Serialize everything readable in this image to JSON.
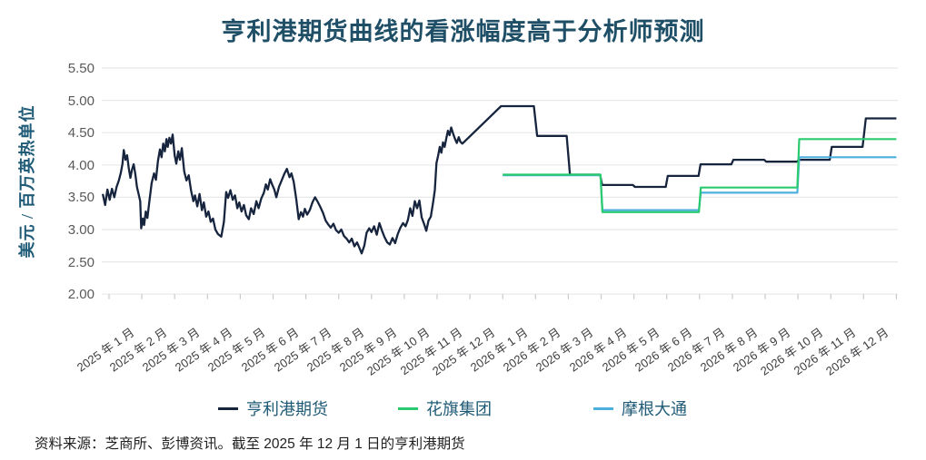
{
  "title": "亨利港期货曲线的看涨幅度高于分析师预测",
  "y_axis": {
    "label": "美元 / 百万英热单位",
    "tick_labels": [
      "5.50",
      "5.00",
      "4.50",
      "4.00",
      "3.50",
      "3.00",
      "2.50",
      "2.00"
    ]
  },
  "x_axis": {
    "tick_labels": [
      "2025 年 1 月",
      "2025 年 2 月",
      "2025 年 3 月",
      "2025 年 4 月",
      "2025 年 5 月",
      "2025 年 6 月",
      "2025 年 7 月",
      "2025 年 8 月",
      "2025 年 9 月",
      "2025 年 10 月",
      "2025 年 11 月",
      "2025 年 12 月",
      "2026 年 1 月",
      "2026 年 2 月",
      "2026 年 3 月",
      "2026 年 4 月",
      "2026 年 5 月",
      "2026 年 6 月",
      "2026 年 7 月",
      "2026 年 8 月",
      "2026 年 9 月",
      "2026 年 10 月",
      "2026 年 11 月",
      "2026 年 12 月"
    ]
  },
  "legend": {
    "items": [
      {
        "label": "亨利港期货",
        "color": "#16243e"
      },
      {
        "label": "花旗集团",
        "color": "#29cb6e"
      },
      {
        "label": "摩根大通",
        "color": "#4dafde"
      }
    ]
  },
  "source_note": "资料来源：芝商所、彭博资讯。截至 2025 年 12 月 1 日的亨利港期货",
  "chart_data": {
    "type": "line",
    "title": "亨利港期货曲线的看涨幅度高于分析师预测",
    "ylabel": "美元 / 百万英热单位",
    "ylim": [
      2.0,
      5.5
    ],
    "yticks": [
      2.0,
      2.5,
      3.0,
      3.5,
      4.0,
      4.5,
      5.0,
      5.5
    ],
    "x_unit": "months since 2025-01 (0 = 2025-01-01)",
    "xlim": [
      -0.25,
      24
    ],
    "grid": "horizontal",
    "legend_position": "bottom",
    "futures_monthly_2026": {
      "months": [
        "2026-01",
        "2026-02",
        "2026-03",
        "2026-04",
        "2026-05",
        "2026-06",
        "2026-07",
        "2026-08",
        "2026-09",
        "2026-10",
        "2026-11",
        "2026-12"
      ],
      "values": [
        4.91,
        4.45,
        3.85,
        3.69,
        3.66,
        3.83,
        4.01,
        4.08,
        4.05,
        4.08,
        4.28,
        4.72
      ]
    },
    "quarterly_forecasts_2026": {
      "citi": [
        3.85,
        3.27,
        3.65,
        4.4
      ],
      "jpmorgan": [
        3.84,
        3.3,
        3.57,
        4.12
      ]
    },
    "series": [
      {
        "name": "亨利港期货（历史价格）",
        "color": "#16243e",
        "width": 2.3,
        "points": [
          [
            -0.19,
            3.55
          ],
          [
            -0.12,
            3.38
          ],
          [
            -0.05,
            3.62
          ],
          [
            0.02,
            3.46
          ],
          [
            0.09,
            3.63
          ],
          [
            0.16,
            3.5
          ],
          [
            0.23,
            3.66
          ],
          [
            0.3,
            3.76
          ],
          [
            0.36,
            3.88
          ],
          [
            0.41,
            4.02
          ],
          [
            0.45,
            4.23
          ],
          [
            0.5,
            4.08
          ],
          [
            0.55,
            4.15
          ],
          [
            0.6,
            3.95
          ],
          [
            0.65,
            3.8
          ],
          [
            0.7,
            3.93
          ],
          [
            0.75,
            4.01
          ],
          [
            0.8,
            3.86
          ],
          [
            0.85,
            3.66
          ],
          [
            0.9,
            3.55
          ],
          [
            0.95,
            3.44
          ],
          [
            0.98,
            3.02
          ],
          [
            1.03,
            3.17
          ],
          [
            1.07,
            3.07
          ],
          [
            1.12,
            3.28
          ],
          [
            1.17,
            3.18
          ],
          [
            1.23,
            3.44
          ],
          [
            1.3,
            3.72
          ],
          [
            1.37,
            3.87
          ],
          [
            1.43,
            3.77
          ],
          [
            1.49,
            4.06
          ],
          [
            1.55,
            4.24
          ],
          [
            1.6,
            4.12
          ],
          [
            1.65,
            4.33
          ],
          [
            1.7,
            4.21
          ],
          [
            1.75,
            4.4
          ],
          [
            1.79,
            4.28
          ],
          [
            1.84,
            4.42
          ],
          [
            1.89,
            4.33
          ],
          [
            1.94,
            4.47
          ],
          [
            2.0,
            4.15
          ],
          [
            2.05,
            4.02
          ],
          [
            2.11,
            4.21
          ],
          [
            2.16,
            4.08
          ],
          [
            2.22,
            4.26
          ],
          [
            2.29,
            3.9
          ],
          [
            2.36,
            3.76
          ],
          [
            2.43,
            3.84
          ],
          [
            2.5,
            3.6
          ],
          [
            2.57,
            3.44
          ],
          [
            2.62,
            3.53
          ],
          [
            2.69,
            3.36
          ],
          [
            2.76,
            3.55
          ],
          [
            2.83,
            3.3
          ],
          [
            2.89,
            3.42
          ],
          [
            2.96,
            3.2
          ],
          [
            3.03,
            3.28
          ],
          [
            3.1,
            3.12
          ],
          [
            3.17,
            3.17
          ],
          [
            3.24,
            3.0
          ],
          [
            3.32,
            2.93
          ],
          [
            3.42,
            2.89
          ],
          [
            3.5,
            3.12
          ],
          [
            3.57,
            3.58
          ],
          [
            3.63,
            3.49
          ],
          [
            3.7,
            3.61
          ],
          [
            3.77,
            3.46
          ],
          [
            3.84,
            3.53
          ],
          [
            3.91,
            3.33
          ],
          [
            3.97,
            3.42
          ],
          [
            4.04,
            3.28
          ],
          [
            4.11,
            3.38
          ],
          [
            4.18,
            3.22
          ],
          [
            4.26,
            3.16
          ],
          [
            4.33,
            3.33
          ],
          [
            4.41,
            3.24
          ],
          [
            4.49,
            3.44
          ],
          [
            4.56,
            3.33
          ],
          [
            4.64,
            3.48
          ],
          [
            4.72,
            3.57
          ],
          [
            4.78,
            3.7
          ],
          [
            4.84,
            3.62
          ],
          [
            4.91,
            3.78
          ],
          [
            4.97,
            3.7
          ],
          [
            5.04,
            3.62
          ],
          [
            5.1,
            3.5
          ],
          [
            5.18,
            3.66
          ],
          [
            5.26,
            3.76
          ],
          [
            5.34,
            3.86
          ],
          [
            5.42,
            3.94
          ],
          [
            5.5,
            3.81
          ],
          [
            5.56,
            3.87
          ],
          [
            5.63,
            3.74
          ],
          [
            5.71,
            3.46
          ],
          [
            5.78,
            3.16
          ],
          [
            5.85,
            3.27
          ],
          [
            5.91,
            3.2
          ],
          [
            5.97,
            3.32
          ],
          [
            6.04,
            3.23
          ],
          [
            6.12,
            3.3
          ],
          [
            6.2,
            3.42
          ],
          [
            6.28,
            3.5
          ],
          [
            6.36,
            3.43
          ],
          [
            6.44,
            3.35
          ],
          [
            6.52,
            3.26
          ],
          [
            6.6,
            3.14
          ],
          [
            6.68,
            3.08
          ],
          [
            6.76,
            3.03
          ],
          [
            6.84,
            3.09
          ],
          [
            6.92,
            2.99
          ],
          [
            7.0,
            2.95
          ],
          [
            7.08,
            3.0
          ],
          [
            7.16,
            2.9
          ],
          [
            7.24,
            2.86
          ],
          [
            7.32,
            2.8
          ],
          [
            7.4,
            2.86
          ],
          [
            7.48,
            2.74
          ],
          [
            7.56,
            2.8
          ],
          [
            7.63,
            2.72
          ],
          [
            7.7,
            2.63
          ],
          [
            7.78,
            2.75
          ],
          [
            7.85,
            2.95
          ],
          [
            7.93,
            3.02
          ],
          [
            8.0,
            2.96
          ],
          [
            8.08,
            3.05
          ],
          [
            8.16,
            2.92
          ],
          [
            8.24,
            3.1
          ],
          [
            8.32,
            2.98
          ],
          [
            8.4,
            2.88
          ],
          [
            8.48,
            2.8
          ],
          [
            8.56,
            2.77
          ],
          [
            8.64,
            2.87
          ],
          [
            8.72,
            2.79
          ],
          [
            8.8,
            2.93
          ],
          [
            8.88,
            3.03
          ],
          [
            8.96,
            3.1
          ],
          [
            9.04,
            3.05
          ],
          [
            9.11,
            3.15
          ],
          [
            9.18,
            3.33
          ],
          [
            9.25,
            3.21
          ],
          [
            9.32,
            3.44
          ],
          [
            9.39,
            3.33
          ],
          [
            9.46,
            3.45
          ],
          [
            9.53,
            3.19
          ],
          [
            9.6,
            3.09
          ],
          [
            9.67,
            2.98
          ],
          [
            9.74,
            3.14
          ],
          [
            9.81,
            3.2
          ],
          [
            9.88,
            3.43
          ],
          [
            9.93,
            3.61
          ],
          [
            9.98,
            4.03
          ],
          [
            10.03,
            4.14
          ],
          [
            10.08,
            4.28
          ],
          [
            10.13,
            4.19
          ],
          [
            10.18,
            4.35
          ],
          [
            10.23,
            4.28
          ],
          [
            10.28,
            4.41
          ],
          [
            10.33,
            4.53
          ],
          [
            10.38,
            4.46
          ],
          [
            10.43,
            4.58
          ],
          [
            10.48,
            4.5
          ],
          [
            10.54,
            4.41
          ],
          [
            10.6,
            4.34
          ],
          [
            10.66,
            4.43
          ],
          [
            10.71,
            4.36
          ],
          [
            10.77,
            4.33
          ]
        ]
      },
      {
        "name": "亨利港期货（期货曲线）",
        "color": "#16243e",
        "width": 2.3,
        "points": [
          [
            10.77,
            4.33
          ],
          [
            11.95,
            4.91
          ],
          [
            12.95,
            4.91
          ],
          [
            13.05,
            4.45
          ],
          [
            13.95,
            4.45
          ],
          [
            14.05,
            3.85
          ],
          [
            14.97,
            3.85
          ],
          [
            15.03,
            3.69
          ],
          [
            15.97,
            3.69
          ],
          [
            16.03,
            3.66
          ],
          [
            16.97,
            3.66
          ],
          [
            17.03,
            3.83
          ],
          [
            17.97,
            3.83
          ],
          [
            18.03,
            4.01
          ],
          [
            18.97,
            4.01
          ],
          [
            19.03,
            4.08
          ],
          [
            19.97,
            4.08
          ],
          [
            20.03,
            4.05
          ],
          [
            20.97,
            4.05
          ],
          [
            21.03,
            4.08
          ],
          [
            21.97,
            4.08
          ],
          [
            22.03,
            4.28
          ],
          [
            22.97,
            4.28
          ],
          [
            23.07,
            4.72
          ],
          [
            24.0,
            4.72
          ]
        ]
      },
      {
        "name": "摩根大通",
        "color": "#4dafde",
        "width": 2.2,
        "points": [
          [
            12.0,
            3.84
          ],
          [
            14.98,
            3.84
          ],
          [
            15.04,
            3.3
          ],
          [
            17.98,
            3.3
          ],
          [
            18.04,
            3.57
          ],
          [
            20.98,
            3.57
          ],
          [
            21.04,
            4.12
          ],
          [
            24.0,
            4.12
          ]
        ]
      },
      {
        "name": "花旗集团",
        "color": "#29cb6e",
        "width": 2.2,
        "points": [
          [
            12.0,
            3.85
          ],
          [
            14.98,
            3.85
          ],
          [
            15.04,
            3.27
          ],
          [
            17.98,
            3.27
          ],
          [
            18.04,
            3.65
          ],
          [
            20.98,
            3.65
          ],
          [
            21.04,
            4.4
          ],
          [
            24.0,
            4.4
          ]
        ]
      }
    ]
  }
}
